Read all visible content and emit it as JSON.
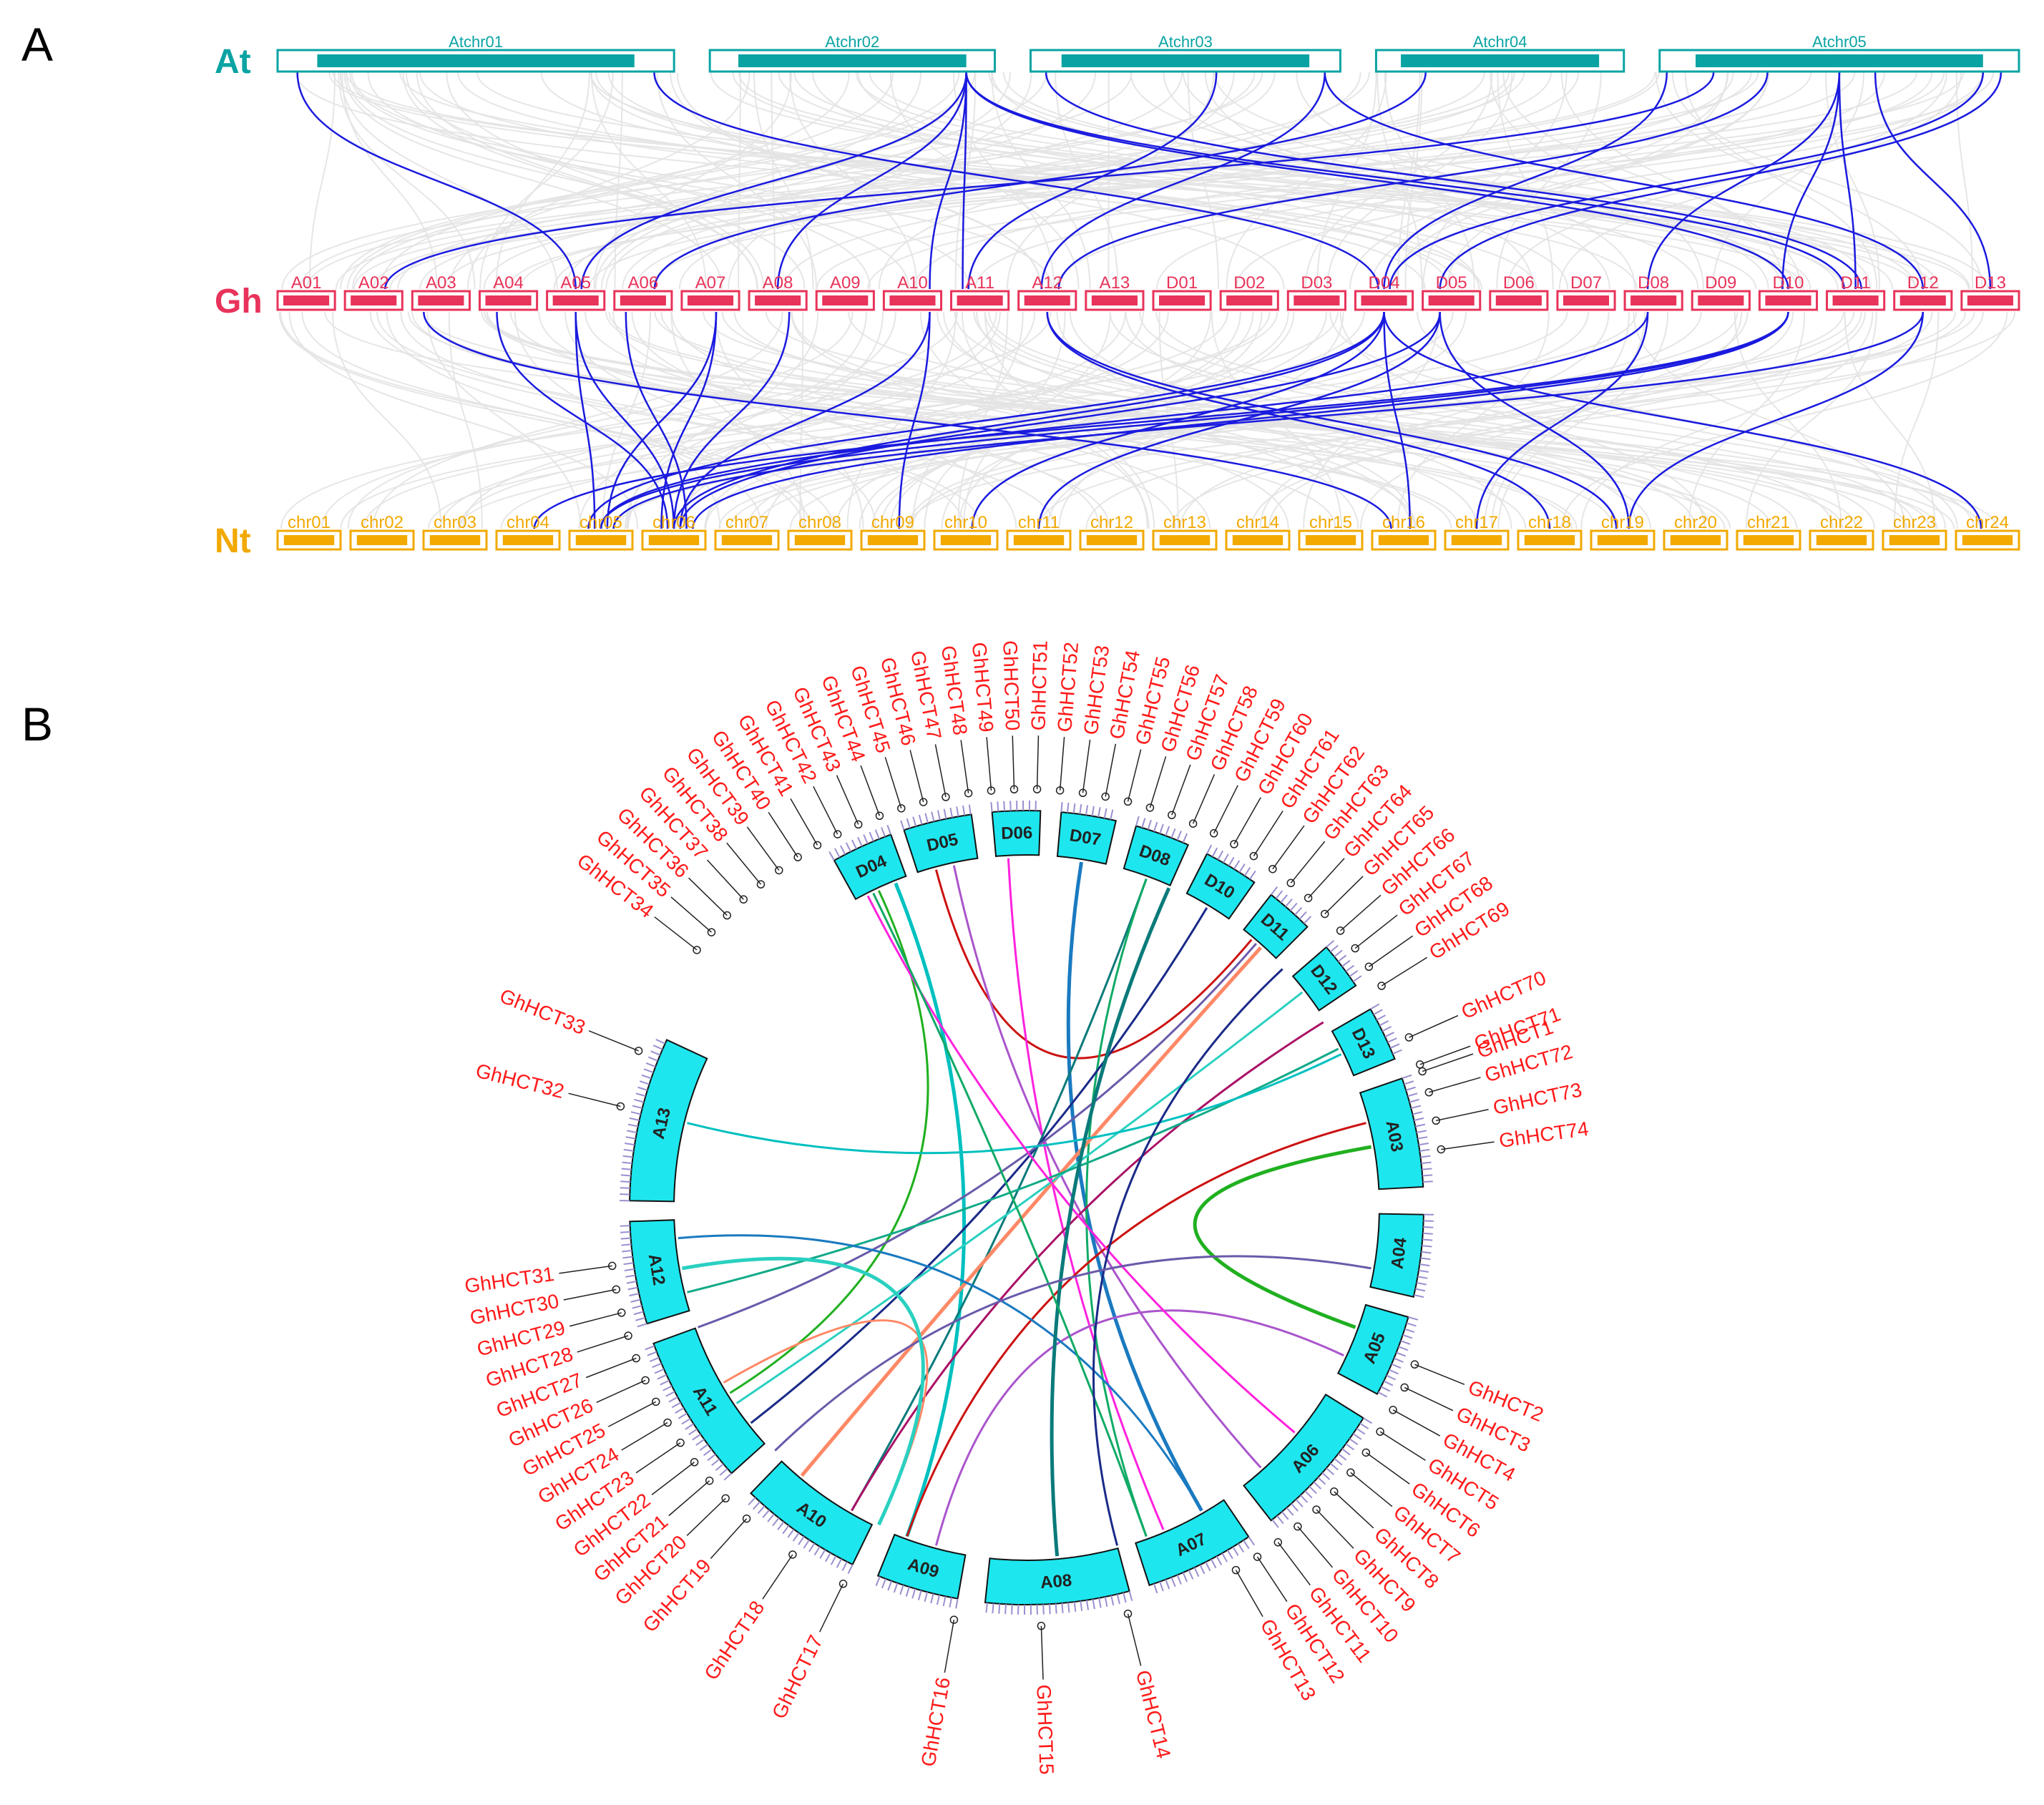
{
  "panelA": {
    "letter": "A",
    "rows": [
      {
        "label": "At",
        "color": "#0aa3a3",
        "chromosomes": [
          "Atchr01",
          "Atchr02",
          "Atchr03",
          "Atchr04",
          "Atchr05"
        ]
      },
      {
        "label": "Gh",
        "color": "#e8335a",
        "chromosomes": [
          "A01",
          "A02",
          "A03",
          "A04",
          "A05",
          "A06",
          "A07",
          "A08",
          "A09",
          "A10",
          "A11",
          "A12",
          "A13",
          "D01",
          "D02",
          "D03",
          "D04",
          "D05",
          "D06",
          "D07",
          "D08",
          "D09",
          "D10",
          "D11",
          "D12",
          "D13"
        ]
      },
      {
        "label": "Nt",
        "color": "#f2a900",
        "chromosomes": [
          "chr01",
          "chr02",
          "chr03",
          "chr04",
          "chr05",
          "chr06",
          "chr07",
          "chr08",
          "chr09",
          "chr10",
          "chr11",
          "chr12",
          "chr13",
          "chr14",
          "chr15",
          "chr16",
          "chr17",
          "chr18",
          "chr19",
          "chr20",
          "chr21",
          "chr22",
          "chr23",
          "chr24"
        ]
      }
    ],
    "link_color": "#1a1adf",
    "background_link_color": "#e3e3e3"
  },
  "panelB": {
    "letter": "B",
    "chromosome_color": "#1ee6ee",
    "gene_label_color": "#ff1a1a",
    "chromosomes": [
      "D04",
      "D05",
      "D06",
      "D07",
      "D08",
      "D10",
      "D11",
      "D12",
      "D13",
      "A03",
      "A04",
      "A05",
      "A06",
      "A07",
      "A08",
      "A09",
      "A10",
      "A11",
      "A12",
      "A13"
    ],
    "genes": [
      "GhHCT1",
      "GhHCT2",
      "GhHCT3",
      "GhHCT4",
      "GhHCT5",
      "GhHCT6",
      "GhHCT7",
      "GhHCT8",
      "GhHCT9",
      "GhHCT10",
      "GhHCT11",
      "GhHCT12",
      "GhHCT13",
      "GhHCT14",
      "GhHCT15",
      "GhHCT16",
      "GhHCT17",
      "GhHCT18",
      "GhHCT19",
      "GhHCT20",
      "GhHCT21",
      "GhHCT22",
      "GhHCT23",
      "GhHCT24",
      "GhHCT25",
      "GhHCT26",
      "GhHCT27",
      "GhHCT28",
      "GhHCT29",
      "GhHCT30",
      "GhHCT31",
      "GhHCT32",
      "GhHCT33",
      "GhHCT34",
      "GhHCT35",
      "GhHCT36",
      "GhHCT37",
      "GhHCT38",
      "GhHCT39",
      "GhHCT40",
      "GhHCT41",
      "GhHCT42",
      "GhHCT43",
      "GhHCT44",
      "GhHCT45",
      "GhHCT46",
      "GhHCT47",
      "GhHCT48",
      "GhHCT49",
      "GhHCT50",
      "GhHCT51",
      "GhHCT52",
      "GhHCT53",
      "GhHCT54",
      "GhHCT55",
      "GhHCT56",
      "GhHCT57",
      "GhHCT58",
      "GhHCT59",
      "GhHCT60",
      "GhHCT61",
      "GhHCT62",
      "GhHCT63",
      "GhHCT64",
      "GhHCT65",
      "GhHCT66",
      "GhHCT67",
      "GhHCT68",
      "GhHCT69",
      "GhHCT70",
      "GhHCT71",
      "GhHCT72",
      "GhHCT73",
      "GhHCT74"
    ],
    "link_colors": [
      "#00c0c0",
      "#20b020",
      "#cc1111",
      "#aa55cc",
      "#ff22dd",
      "#1a7ac0",
      "#0a7a7a",
      "#11aa66",
      "#1a2a88",
      "#6a5aaa",
      "#ff8866",
      "#2ad0c0",
      "#aa1166",
      "#11aa88"
    ]
  }
}
